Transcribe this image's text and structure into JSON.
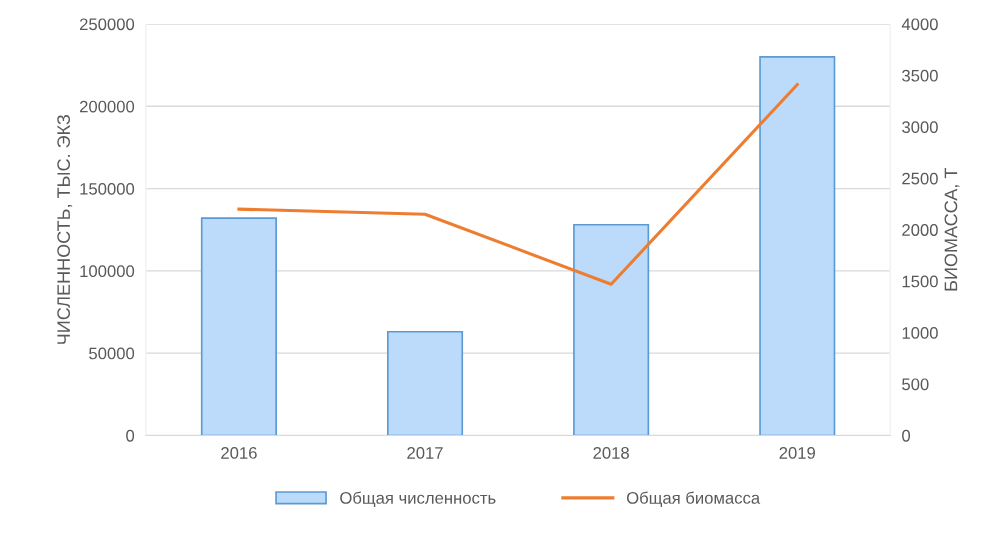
{
  "chart_data": {
    "type": "bar",
    "categories": [
      "2016",
      "2017",
      "2018",
      "2019"
    ],
    "ylabel": "ЧИСЛЕННОСТЬ, ТЫС. ЭКЗ",
    "y2label": "БИОМАССА, Т",
    "series": [
      {
        "name": "Общая численность",
        "color": "#bcdaf9",
        "values": [
          132000,
          63000,
          128000,
          230000
        ]
      },
      {
        "name": "Общая биомасса",
        "type": "line",
        "axis": "y2",
        "color": "#ed7d31",
        "values": [
          2200,
          2150,
          1470,
          3410
        ]
      }
    ],
    "ylim": [
      0,
      250000
    ],
    "yticks": [
      0,
      50000,
      100000,
      150000,
      200000,
      250000
    ],
    "y2lim": [
      0,
      4000
    ],
    "y2ticks": [
      0,
      500,
      1000,
      1500,
      2000,
      2500,
      3000,
      3500,
      4000
    ],
    "grid": "y",
    "legend": "bottom",
    "marker": "none",
    "line_style": "solid"
  }
}
